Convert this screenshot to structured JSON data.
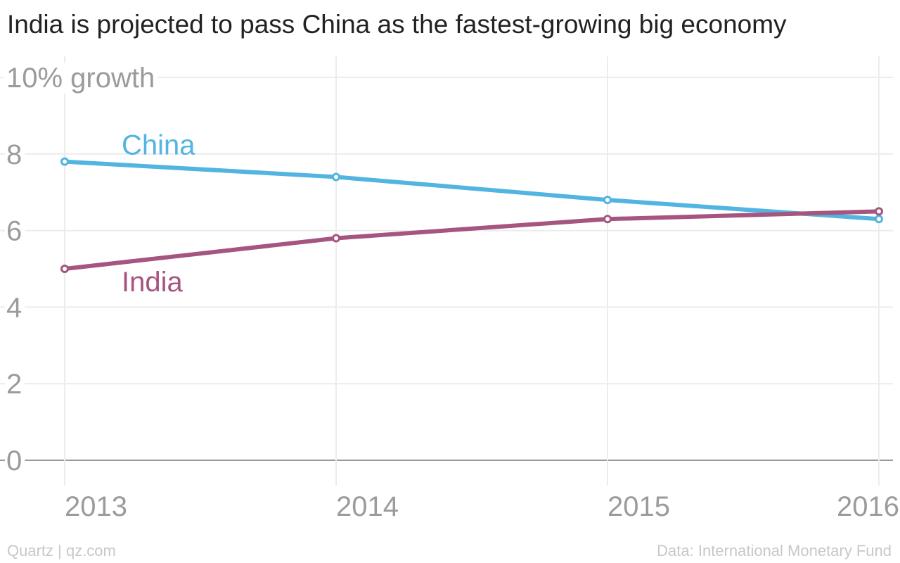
{
  "title": "India is projected to pass China as the fastest-growing big economy",
  "chart_data": {
    "type": "line",
    "x": [
      2013,
      2014,
      2015,
      2016
    ],
    "x_tick_labels": [
      "2013",
      "2014",
      "2015",
      "2016"
    ],
    "y_tick_labels": [
      "0",
      "2",
      "4",
      "6",
      "8",
      "10% growth"
    ],
    "y_ticks": [
      0,
      2,
      4,
      6,
      8,
      10
    ],
    "ylim": [
      0,
      10
    ],
    "ylabel": "",
    "xlabel": "",
    "grid": true,
    "series": [
      {
        "name": "China",
        "values": [
          7.8,
          7.4,
          6.8,
          6.3
        ],
        "color": "#52b4e0"
      },
      {
        "name": "India",
        "values": [
          5.0,
          5.8,
          6.3,
          6.5
        ],
        "color": "#a5557f"
      }
    ]
  },
  "footer": {
    "left": "Quartz | qz.com",
    "right": "Data: International Monetary Fund"
  }
}
